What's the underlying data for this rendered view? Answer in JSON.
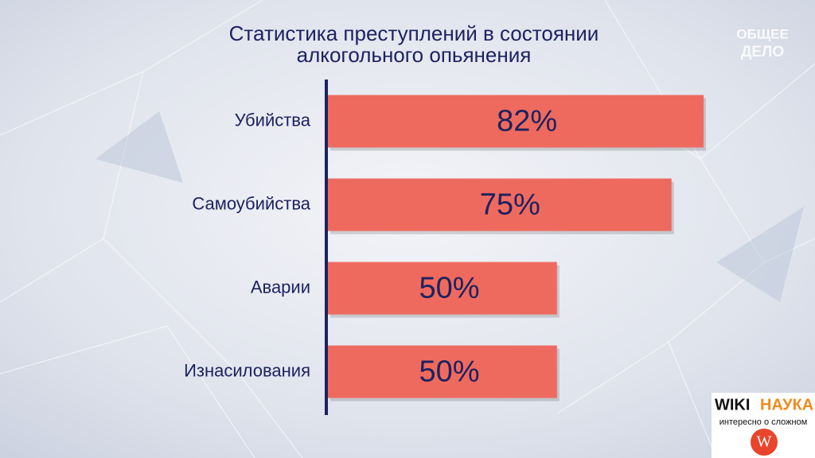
{
  "chart_data": {
    "type": "barh",
    "title": [
      "Статистика преступлений в состоянии",
      "алкогольного опьянения"
    ],
    "categories": [
      "Убийства",
      "Самоубийства",
      "Аварии",
      "Изнасилования"
    ],
    "values": [
      82,
      75,
      50,
      50
    ],
    "value_labels": [
      "82%",
      "75%",
      "50%",
      "50%"
    ],
    "color": "#ef6a5e"
  },
  "channel_logo": [
    "ОБЩЕЕ",
    "ДЕЛО"
  ],
  "wiki_logo": {
    "left": "WIKI",
    "right": "НАУКА",
    "tagline": "интересно о сложном",
    "icon": "W"
  }
}
